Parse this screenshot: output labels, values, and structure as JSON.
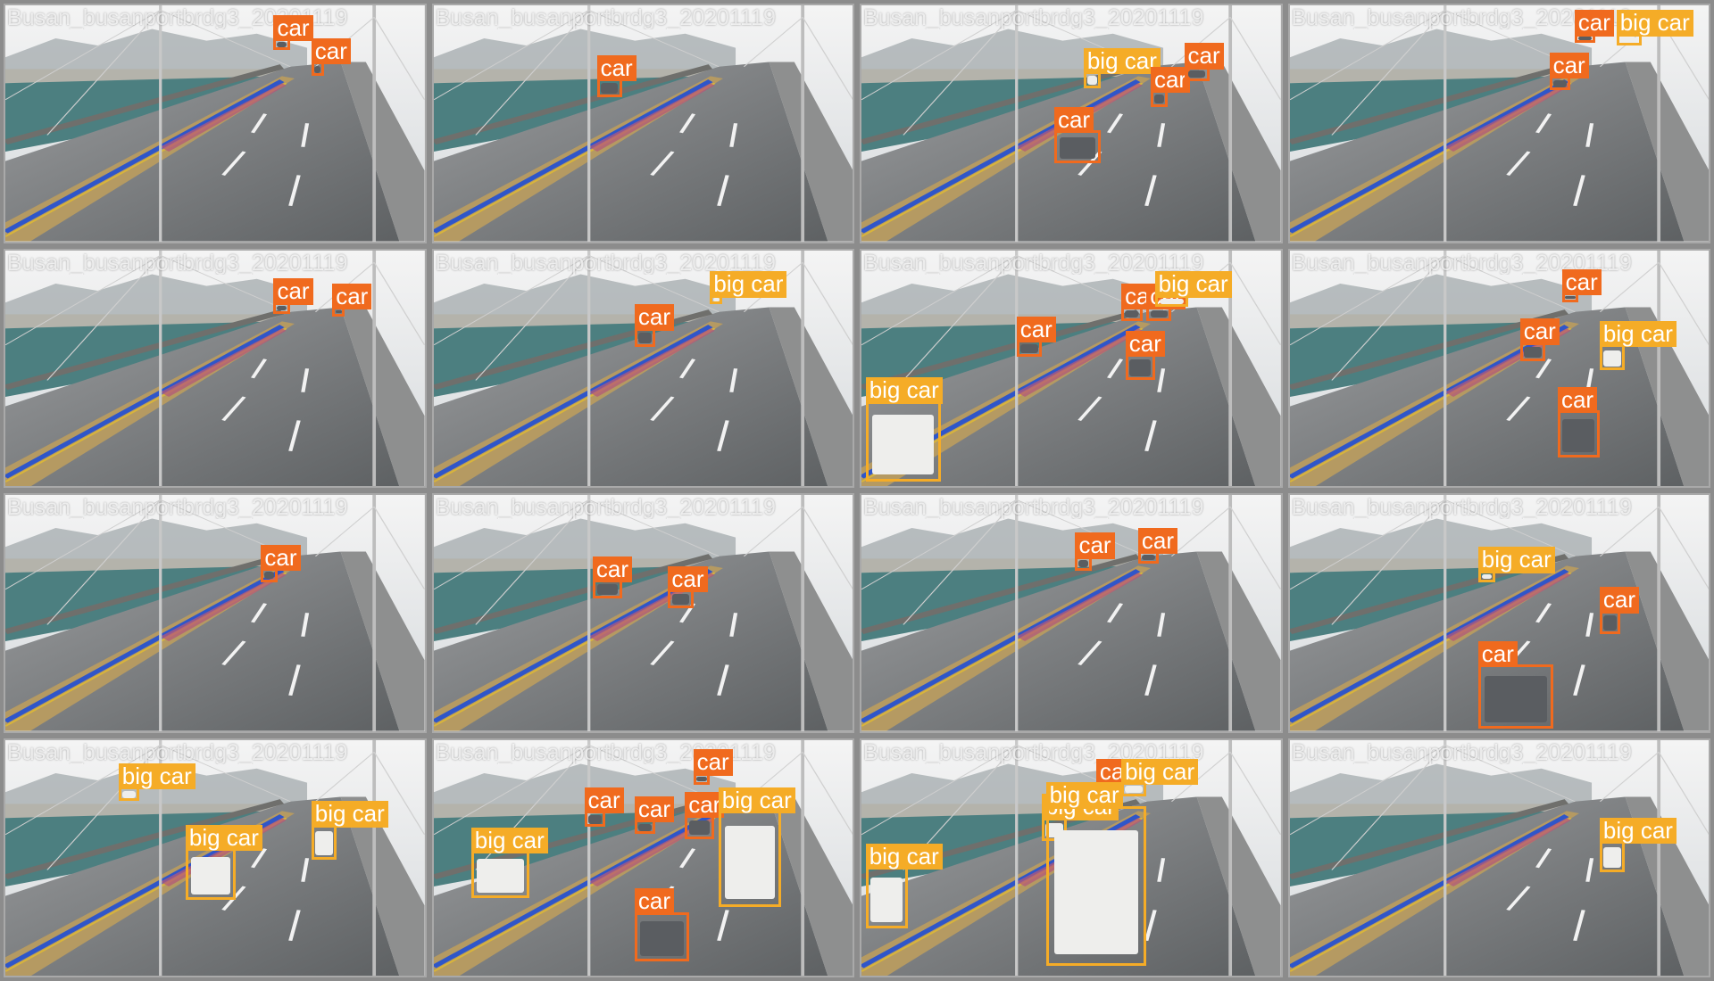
{
  "watermarks": {
    "a": "Busan_busanportbrdg3_20201119",
    "b": "Busan_busanportbrdg3_20201119"
  },
  "labels": {
    "car": "car",
    "big_car": "big car"
  },
  "colors": {
    "car": "#f06a1e",
    "big_car": "#f5ac27"
  },
  "tiles": [
    {
      "id": 1,
      "watermark": "a",
      "detections": [
        "car",
        "car"
      ]
    },
    {
      "id": 2,
      "watermark": "b",
      "detections": [
        "car"
      ]
    },
    {
      "id": 3,
      "watermark": "b",
      "detections": [
        "big_car",
        "car",
        "car",
        "car"
      ]
    },
    {
      "id": 4,
      "watermark": "b",
      "detections": [
        "big_car",
        "car",
        "car"
      ]
    },
    {
      "id": 5,
      "watermark": "a",
      "detections": [
        "car",
        "car"
      ]
    },
    {
      "id": 6,
      "watermark": "b",
      "detections": [
        "big_car",
        "car"
      ]
    },
    {
      "id": 7,
      "watermark": "b",
      "detections": [
        "big_car",
        "car",
        "car",
        "car",
        "car",
        "big_car"
      ]
    },
    {
      "id": 8,
      "watermark": "b",
      "detections": [
        "car",
        "car",
        "big_car",
        "car"
      ]
    },
    {
      "id": 9,
      "watermark": "a",
      "detections": [
        "car"
      ]
    },
    {
      "id": 10,
      "watermark": "b",
      "detections": [
        "car",
        "car"
      ]
    },
    {
      "id": 11,
      "watermark": "b",
      "detections": [
        "car",
        "car"
      ]
    },
    {
      "id": 12,
      "watermark": "b",
      "detections": [
        "big_car",
        "car",
        "car"
      ]
    },
    {
      "id": 13,
      "watermark": "a",
      "detections": [
        "big_car",
        "big_car",
        "big_car"
      ]
    },
    {
      "id": 14,
      "watermark": "b",
      "detections": [
        "big_car",
        "car",
        "car",
        "car",
        "car",
        "big_car",
        "car"
      ]
    },
    {
      "id": 15,
      "watermark": "b",
      "detections": [
        "big_car",
        "big_car",
        "car",
        "big_car",
        "big_car"
      ]
    },
    {
      "id": 16,
      "watermark": "b",
      "detections": [
        "big_car"
      ]
    }
  ]
}
